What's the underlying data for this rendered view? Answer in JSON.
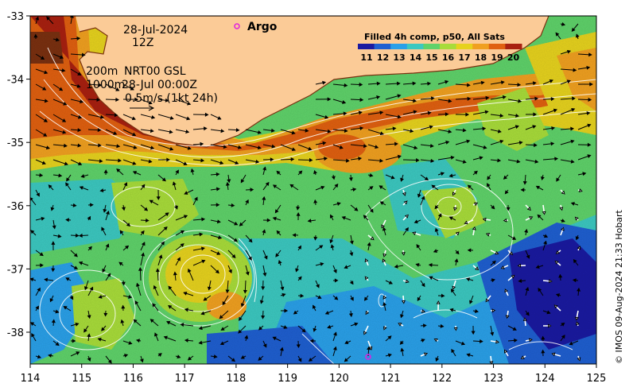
{
  "map": {
    "date": "28-Jul-2024",
    "hour": "12Z",
    "depth_lines": [
      "200m",
      "1000m"
    ],
    "product_line": "NRT00 GSL",
    "product_time": "28-Jul 00:00Z",
    "scale_label": "0.5m/s (1kt 24h)",
    "argo_label": "Argo",
    "colorbar_title": "Filled 4h comp, p50, All Sats",
    "colorbar_ticks": [
      "11",
      "12",
      "13",
      "14",
      "15",
      "16",
      "17",
      "18",
      "19",
      "20"
    ],
    "credit": "© IMOS 09-Aug-2024 21:33 Hobart",
    "lon_ticks": [
      "114",
      "115",
      "116",
      "117",
      "118",
      "119",
      "120",
      "121",
      "122",
      "123",
      "124",
      "125"
    ],
    "lat_ticks": [
      "-33",
      "-34",
      "-35",
      "-36",
      "-37",
      "-38"
    ],
    "colorbar_colors": [
      "#1a1aa0",
      "#1f5fd0",
      "#2aa0e8",
      "#3cc8c0",
      "#5fd26a",
      "#a8dc3a",
      "#e6d21e",
      "#f0a020",
      "#e06010",
      "#a82010"
    ],
    "land_color": "#fbcb97",
    "argo_color": "#e020e0"
  }
}
